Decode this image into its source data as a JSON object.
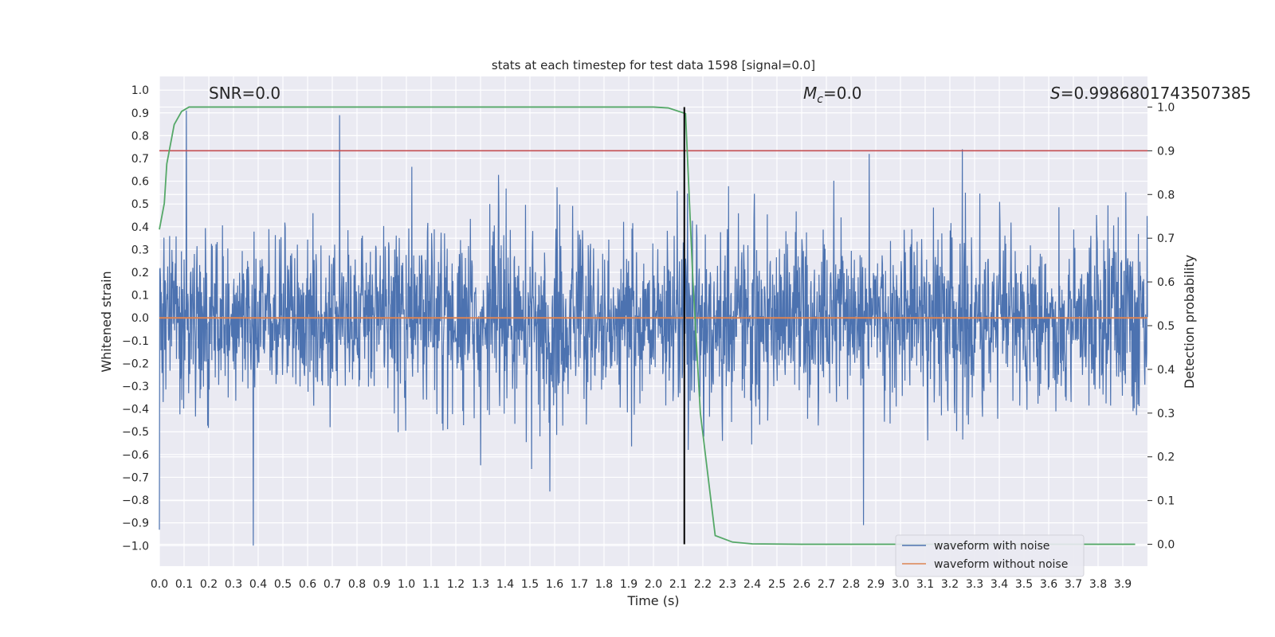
{
  "chart_data": {
    "type": "line",
    "title": "stats at each timestep for test data 1598 [signal=0.0]",
    "xlabel": "Time (s)",
    "ylabel_left": "Whitened strain",
    "ylabel_right": "Detection probability",
    "xlim": [
      0.0,
      4.0
    ],
    "ylim_left": [
      -1.09,
      1.06
    ],
    "ylim_right": [
      -0.05,
      1.07
    ],
    "x_ticks": [
      "0.0",
      "0.1",
      "0.2",
      "0.3",
      "0.4",
      "0.5",
      "0.6",
      "0.7",
      "0.8",
      "0.9",
      "1.0",
      "1.1",
      "1.2",
      "1.3",
      "1.4",
      "1.5",
      "1.6",
      "1.7",
      "1.8",
      "1.9",
      "2.0",
      "2.1",
      "2.2",
      "2.3",
      "2.4",
      "2.5",
      "2.6",
      "2.7",
      "2.8",
      "2.9",
      "3.0",
      "3.1",
      "3.2",
      "3.3",
      "3.4",
      "3.5",
      "3.6",
      "3.7",
      "3.8",
      "3.9"
    ],
    "y_ticks_left": [
      "1.0",
      "0.9",
      "0.8",
      "0.7",
      "0.6",
      "0.5",
      "0.4",
      "0.3",
      "0.2",
      "0.1",
      "0.0",
      "−0.1",
      "−0.2",
      "−0.3",
      "−0.4",
      "−0.5",
      "−0.6",
      "−0.7",
      "−0.8",
      "−0.9",
      "−1.0"
    ],
    "y_ticks_right": [
      "1.0",
      "0.9",
      "0.8",
      "0.7",
      "0.6",
      "0.5",
      "0.4",
      "0.3",
      "0.2",
      "0.1",
      "0.0"
    ],
    "annotations": {
      "snr": "SNR=0.0",
      "mc_symbol": "M",
      "mc_sub": "c",
      "mc_value": "=0.0",
      "s_symbol": "S",
      "s_value": "=0.9986801743507385"
    },
    "legend": {
      "position": "lower right",
      "entries": [
        "waveform with noise",
        "waveform without noise"
      ]
    },
    "series": [
      {
        "name": "waveform with noise",
        "axis": "left",
        "color": "#4c72b0",
        "description_type": "dense noise",
        "amplitude_typical": 0.35,
        "peaks": [
          {
            "x": 0.11,
            "y": 0.91
          },
          {
            "x": 0.73,
            "y": 0.89
          },
          {
            "x": 3.25,
            "y": 0.74
          },
          {
            "x": 0.38,
            "y": -1.0
          },
          {
            "x": 0.0,
            "y": -0.93
          },
          {
            "x": 2.85,
            "y": -0.91
          }
        ]
      },
      {
        "name": "waveform without noise",
        "axis": "left",
        "color": "#dd8452",
        "x": [
          0.0,
          4.0
        ],
        "y": [
          0.0,
          0.0
        ]
      },
      {
        "name": "detection probability",
        "axis": "right",
        "color": "#55a868",
        "x": [
          0.0,
          0.02,
          0.03,
          0.06,
          0.09,
          0.12,
          0.2,
          1.0,
          2.0,
          2.06,
          2.13,
          2.16,
          2.19,
          2.25,
          2.32,
          2.4,
          2.6,
          3.0,
          3.5,
          3.95
        ],
        "y": [
          0.72,
          0.78,
          0.87,
          0.96,
          0.99,
          1.0,
          1.0,
          1.0,
          1.0,
          0.998,
          0.985,
          0.6,
          0.3,
          0.02,
          0.005,
          0.001,
          0.0,
          0.0,
          0.0,
          0.0
        ]
      }
    ],
    "threshold_line": {
      "axis": "right",
      "y": 0.9,
      "color": "#c44e52"
    },
    "marker_line": {
      "x": 2.125,
      "color": "#000000"
    }
  }
}
